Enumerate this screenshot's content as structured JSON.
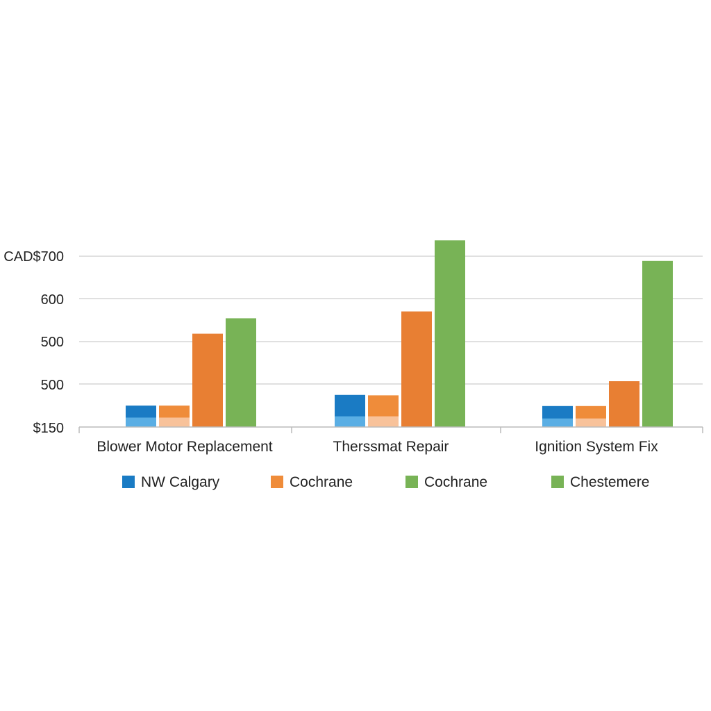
{
  "chart_data": {
    "type": "bar",
    "title": "",
    "xlabel": "",
    "ylabel": "",
    "categories": [
      "Blower Motor Replacement",
      "Therssmat Repair",
      "Ignition System Fix"
    ],
    "y_tick_labels": [
      "$150",
      "500",
      "500",
      "600",
      "CAD$700"
    ],
    "grid": true,
    "legend_position": "bottom",
    "series": [
      {
        "name": "NW Calgary",
        "color": "#1a7bc4",
        "light_color": "#5aaee4",
        "values": [
          250,
          375,
          245
        ],
        "lower_values": [
          110,
          125,
          100
        ]
      },
      {
        "name": "Cochrane",
        "color": "#ef8c3a",
        "light_color": "#f8c29a",
        "values": [
          250,
          370,
          245
        ],
        "lower_values": [
          110,
          125,
          100
        ]
      },
      {
        "name": "Cochrane",
        "color": "#e87f33",
        "values": [
          1090,
          1350,
          535
        ]
      },
      {
        "name": "Chestemere",
        "color": "#78b356",
        "values": [
          1270,
          2180,
          1940
        ]
      }
    ]
  }
}
